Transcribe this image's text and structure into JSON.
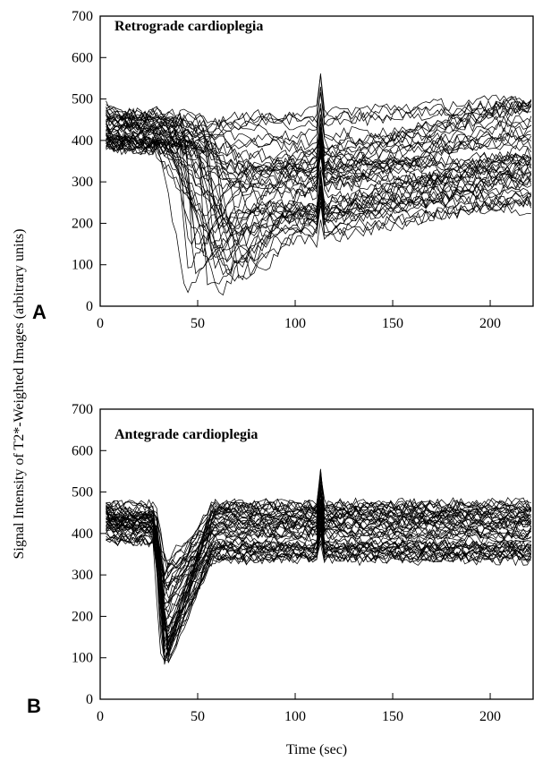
{
  "figure": {
    "ylabel": "Signal Intensity of T2*-Weighted Images (arbitrary units)",
    "xlabel": "Time (sec)"
  },
  "chart_data": [
    {
      "type": "line",
      "panel": "A",
      "title": "Retrograde cardioplegia",
      "xlim": [
        0,
        222
      ],
      "ylim": [
        0,
        700
      ],
      "xticks": [
        0,
        50,
        100,
        150,
        200
      ],
      "yticks": [
        0,
        100,
        200,
        300,
        400,
        500,
        600,
        700
      ],
      "grid": false,
      "legend": "none",
      "n_traces": 48,
      "time_step_sec": 2,
      "baseline": {
        "start_sec": 3,
        "mean_range": [
          380,
          470
        ]
      },
      "first_pass_dip": {
        "onset_sec": [
          18,
          60
        ],
        "minimum_sec": [
          35,
          85
        ],
        "minimum_range": [
          25,
          440
        ]
      },
      "sharp_spike_sec": 113,
      "recovery_end_range": [
        230,
        500
      ]
    },
    {
      "type": "line",
      "panel": "B",
      "title": "Antegrade cardioplegia",
      "xlim": [
        0,
        222
      ],
      "ylim": [
        0,
        700
      ],
      "xticks": [
        0,
        50,
        100,
        150,
        200
      ],
      "yticks": [
        0,
        100,
        200,
        300,
        400,
        500,
        600,
        700
      ],
      "grid": false,
      "legend": "none",
      "n_traces": 48,
      "time_step_sec": 2,
      "baseline": {
        "start_sec": 3,
        "mean_range": [
          380,
          470
        ]
      },
      "first_pass_dip": {
        "onset_sec": [
          26,
          29
        ],
        "minimum_sec": [
          31,
          35
        ],
        "minimum_range": [
          65,
          330
        ]
      },
      "recovery_sec": 58,
      "sharp_spike_sec": 113,
      "steady_state_range": [
        330,
        480
      ]
    }
  ]
}
